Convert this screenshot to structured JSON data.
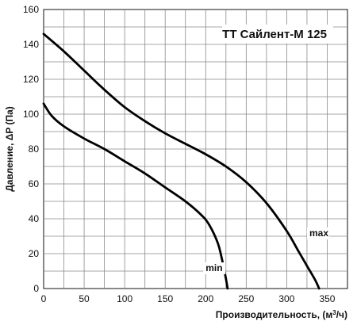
{
  "chart_data": {
    "type": "line",
    "title": "ТТ Сайлент-М 125",
    "xlabel": "Производительность, (м",
    "xlabel_sup": "3",
    "xlabel_tail": "/ч)",
    "ylabel": "Давление, ΔP (Па)",
    "xlim": [
      0,
      375
    ],
    "ylim": [
      0,
      160
    ],
    "x_ticks": [
      0,
      50,
      100,
      150,
      200,
      250,
      300,
      350
    ],
    "y_ticks": [
      0,
      20,
      40,
      60,
      80,
      100,
      120,
      140,
      160
    ],
    "grid": true,
    "series": [
      {
        "name": "max",
        "color": "#000000",
        "points": [
          [
            0,
            146
          ],
          [
            25,
            136
          ],
          [
            50,
            125
          ],
          [
            75,
            114
          ],
          [
            100,
            104
          ],
          [
            125,
            96
          ],
          [
            150,
            89
          ],
          [
            175,
            83
          ],
          [
            200,
            77
          ],
          [
            225,
            70
          ],
          [
            250,
            61
          ],
          [
            275,
            49
          ],
          [
            300,
            33
          ],
          [
            315,
            21
          ],
          [
            325,
            13
          ],
          [
            335,
            5
          ],
          [
            340,
            0
          ]
        ]
      },
      {
        "name": "min",
        "color": "#000000",
        "points": [
          [
            0,
            106
          ],
          [
            10,
            99
          ],
          [
            25,
            93
          ],
          [
            50,
            86
          ],
          [
            75,
            80
          ],
          [
            100,
            73
          ],
          [
            125,
            66
          ],
          [
            150,
            58
          ],
          [
            175,
            50
          ],
          [
            195,
            42
          ],
          [
            205,
            36
          ],
          [
            215,
            26
          ],
          [
            220,
            17
          ],
          [
            224,
            8
          ],
          [
            226,
            3
          ],
          [
            227,
            0
          ]
        ]
      }
    ],
    "annotations": [
      {
        "text": "max",
        "x": 328,
        "y": 30
      },
      {
        "text": "min",
        "x": 200,
        "y": 10
      }
    ]
  }
}
